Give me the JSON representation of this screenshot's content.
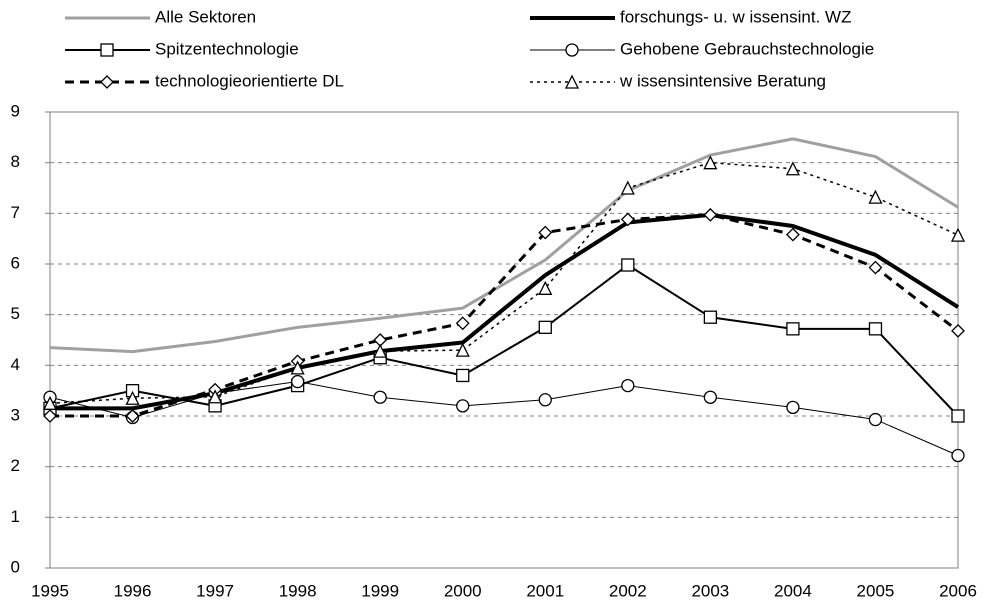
{
  "chart_data": {
    "type": "line",
    "categories": [
      "1995",
      "1996",
      "1997",
      "1998",
      "1999",
      "2000",
      "2001",
      "2002",
      "2003",
      "2004",
      "2005",
      "2006"
    ],
    "ylim": [
      0,
      9
    ],
    "yticks": [
      0,
      1,
      2,
      3,
      4,
      5,
      6,
      7,
      8,
      9
    ],
    "grid": true,
    "series": [
      {
        "name": "Alle Sektoren",
        "color": "#a0a0a0",
        "line_width": 3,
        "dash": "solid",
        "marker": "none",
        "values": [
          4.35,
          4.27,
          4.47,
          4.75,
          4.93,
          5.13,
          6.08,
          7.45,
          8.15,
          8.47,
          8.12,
          7.12
        ]
      },
      {
        "name": "forschungs- u. w issensint. WZ",
        "color": "#000000",
        "line_width": 4,
        "dash": "solid",
        "marker": "none",
        "values": [
          3.15,
          3.15,
          3.45,
          3.95,
          4.28,
          4.45,
          5.78,
          6.82,
          6.97,
          6.75,
          6.18,
          5.15
        ]
      },
      {
        "name": "Spitzentechnologie",
        "color": "#000000",
        "line_width": 2,
        "dash": "solid",
        "marker": "square",
        "values": [
          3.15,
          3.5,
          3.2,
          3.6,
          4.15,
          3.8,
          4.75,
          5.98,
          4.95,
          4.72,
          4.72,
          3.0
        ]
      },
      {
        "name": "Gehobene Gebrauchstechnologie",
        "color": "#000000",
        "line_width": 1,
        "dash": "solid",
        "marker": "circle",
        "values": [
          3.37,
          2.97,
          3.45,
          3.68,
          3.37,
          3.2,
          3.32,
          3.6,
          3.37,
          3.17,
          2.93,
          2.22
        ]
      },
      {
        "name": "technologieorientierte DL",
        "color": "#000000",
        "line_width": 3,
        "dash": "dashed",
        "marker": "diamond",
        "values": [
          3.0,
          3.0,
          3.52,
          4.08,
          4.5,
          4.83,
          6.62,
          6.88,
          6.97,
          6.58,
          5.93,
          4.68
        ]
      },
      {
        "name": "w issensintensive Beratung",
        "color": "#000000",
        "line_width": 1.5,
        "dash": "dotted",
        "marker": "triangle",
        "values": [
          3.25,
          3.35,
          3.38,
          3.95,
          4.28,
          4.3,
          5.52,
          7.5,
          8.0,
          7.88,
          7.32,
          6.57
        ]
      }
    ]
  }
}
